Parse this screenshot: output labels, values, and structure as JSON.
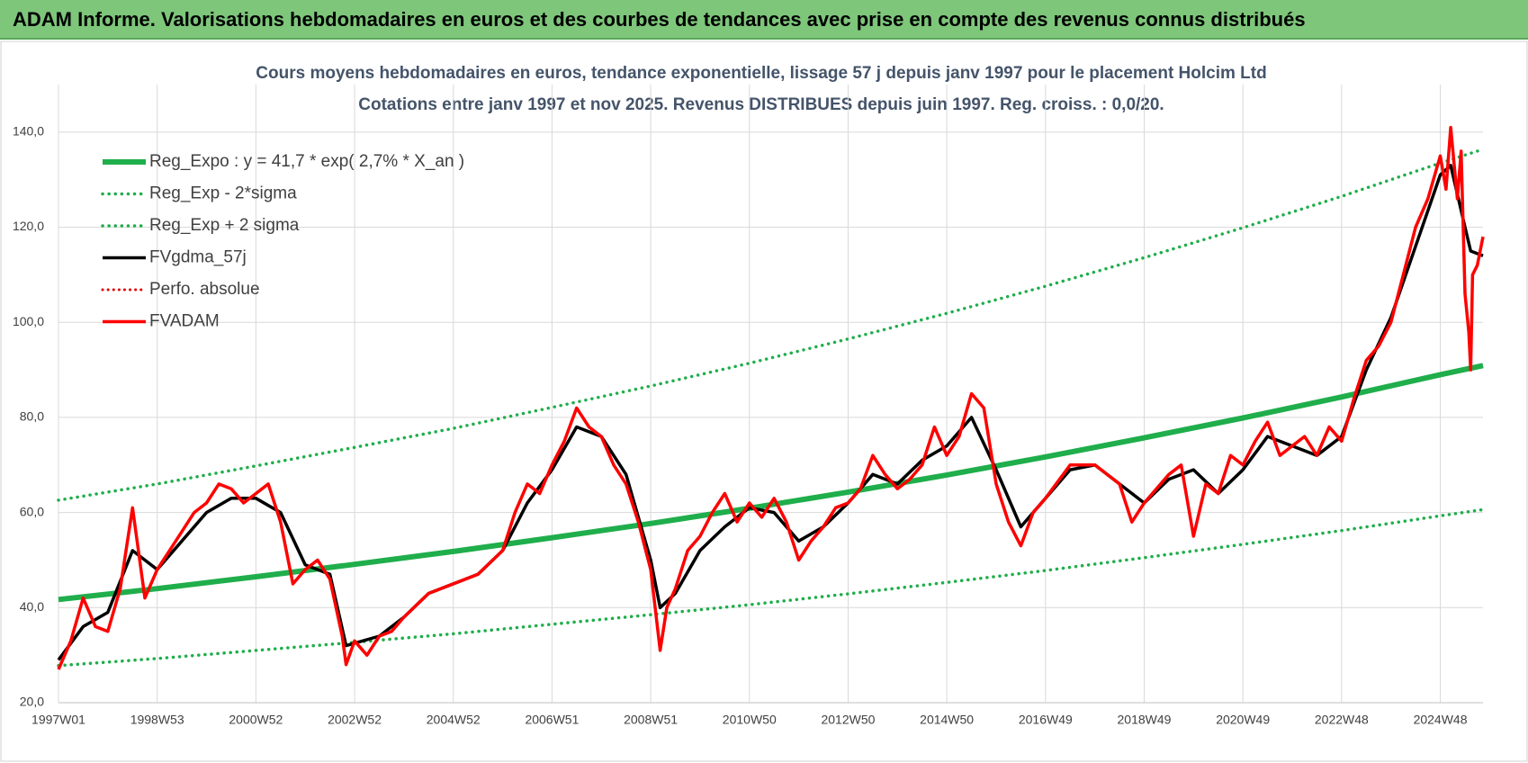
{
  "header": {
    "title": "ADAM Informe. Valorisations hebdomadaires en euros et des courbes de tendances avec prise en compte des revenus connus distribués"
  },
  "chart_data": {
    "type": "line",
    "subtitle": [
      "Cours moyens hebdomadaires en euros, tendance exponentielle, lissage 57 j depuis janv 1997 pour le placement Holcim Ltd",
      "Cotations entre janv 1997 et nov 2025. Revenus DISTRIBUES depuis juin 1997. Reg.  croiss. : 0,0/20."
    ],
    "xlim": [
      0,
      1501
    ],
    "xticks": [
      {
        "value": 0,
        "label": "1997W01"
      },
      {
        "value": 104,
        "label": "1998W53"
      },
      {
        "value": 208,
        "label": "2000W52"
      },
      {
        "value": 312,
        "label": "2002W52"
      },
      {
        "value": 416,
        "label": "2004W52"
      },
      {
        "value": 520,
        "label": "2006W51"
      },
      {
        "value": 624,
        "label": "2008W51"
      },
      {
        "value": 728,
        "label": "2010W50"
      },
      {
        "value": 832,
        "label": "2012W50"
      },
      {
        "value": 936,
        "label": "2014W50"
      },
      {
        "value": 1040,
        "label": "2016W49"
      },
      {
        "value": 1144,
        "label": "2018W49"
      },
      {
        "value": 1248,
        "label": "2020W49"
      },
      {
        "value": 1352,
        "label": "2022W48"
      },
      {
        "value": 1456,
        "label": "2024W48"
      }
    ],
    "ylim": [
      20,
      150
    ],
    "yticks": [
      {
        "value": 20,
        "label": "20,0"
      },
      {
        "value": 40,
        "label": "40,0"
      },
      {
        "value": 60,
        "label": "60,0"
      },
      {
        "value": 80,
        "label": "80,0"
      },
      {
        "value": 100,
        "label": "100,0"
      },
      {
        "value": 120,
        "label": "120,0"
      },
      {
        "value": 140,
        "label": "140,0"
      }
    ],
    "grid": true,
    "series": [
      {
        "name": "Reg_Expo : y = 41,7 * exp( 2,7% *  X_an )",
        "color": "#1fae4b",
        "style": "solid",
        "width": 6,
        "x": [
          0,
          104,
          208,
          312,
          416,
          520,
          624,
          728,
          832,
          936,
          1040,
          1144,
          1248,
          1352,
          1456,
          1501
        ],
        "values": [
          41.7,
          44.0,
          46.5,
          49.1,
          51.8,
          54.7,
          57.7,
          60.9,
          64.3,
          67.9,
          71.7,
          75.7,
          79.9,
          84.3,
          89.0,
          90.9
        ]
      },
      {
        "name": "Reg_Exp - 2*sigma",
        "color": "#1fae4b",
        "style": "dotted",
        "width": 3.5,
        "x": [
          0,
          104,
          208,
          312,
          416,
          520,
          624,
          728,
          832,
          936,
          1040,
          1144,
          1248,
          1352,
          1456,
          1501
        ],
        "values": [
          27.8,
          29.3,
          31.0,
          32.7,
          34.5,
          36.5,
          38.5,
          40.6,
          42.9,
          45.3,
          47.8,
          50.5,
          53.3,
          56.2,
          59.3,
          60.6
        ]
      },
      {
        "name": "Reg_Exp + 2 sigma",
        "color": "#1fae4b",
        "style": "dotted",
        "width": 3.5,
        "x": [
          0,
          104,
          208,
          312,
          416,
          520,
          624,
          728,
          832,
          936,
          1040,
          1144,
          1248,
          1352,
          1456,
          1501
        ],
        "values": [
          62.6,
          66.0,
          69.8,
          73.7,
          77.7,
          82.1,
          86.6,
          91.4,
          96.5,
          101.9,
          107.6,
          113.6,
          119.9,
          126.5,
          133.5,
          136.4
        ]
      },
      {
        "name": "FVgdma_57j",
        "color": "#000000",
        "style": "solid",
        "width": 3.5,
        "x": [
          0,
          26,
          52,
          78,
          104,
          130,
          156,
          182,
          208,
          234,
          260,
          286,
          303,
          338,
          364,
          390,
          416,
          442,
          468,
          494,
          520,
          546,
          572,
          598,
          624,
          634,
          650,
          676,
          702,
          728,
          754,
          780,
          806,
          832,
          858,
          884,
          910,
          936,
          962,
          988,
          1014,
          1040,
          1066,
          1092,
          1118,
          1144,
          1170,
          1196,
          1222,
          1248,
          1274,
          1300,
          1326,
          1352,
          1378,
          1404,
          1430,
          1456,
          1467,
          1482,
          1488,
          1501
        ],
        "values": [
          29,
          36,
          39,
          52,
          48,
          54,
          60,
          63,
          63,
          60,
          49,
          47,
          32,
          34,
          38,
          43,
          45,
          47,
          52,
          62,
          69,
          78,
          76,
          68,
          50,
          40,
          43,
          52,
          57,
          61,
          60,
          54,
          57,
          62,
          68,
          66,
          71,
          74,
          80,
          69,
          57,
          63,
          69,
          70,
          66,
          62,
          67,
          69,
          64,
          69,
          76,
          74,
          72,
          76,
          90,
          101,
          116,
          131,
          133,
          120,
          115,
          114
        ]
      },
      {
        "name": "Perfo. absolue",
        "color": "#e00000",
        "style": "dotted",
        "width": 3,
        "x": [],
        "values": []
      },
      {
        "name": "FVADAM",
        "color": "#ff0000",
        "style": "solid",
        "width": 3.5,
        "x": [
          0,
          13,
          26,
          39,
          52,
          65,
          78,
          91,
          104,
          117,
          130,
          143,
          156,
          169,
          182,
          195,
          208,
          221,
          234,
          247,
          260,
          273,
          286,
          299,
          303,
          312,
          325,
          338,
          351,
          364,
          390,
          416,
          442,
          468,
          481,
          494,
          507,
          520,
          533,
          546,
          559,
          572,
          585,
          598,
          611,
          624,
          634,
          641,
          650,
          663,
          676,
          689,
          702,
          715,
          728,
          741,
          754,
          767,
          780,
          793,
          806,
          819,
          832,
          845,
          858,
          871,
          884,
          897,
          910,
          923,
          936,
          949,
          962,
          975,
          988,
          1001,
          1014,
          1027,
          1040,
          1066,
          1092,
          1118,
          1131,
          1144,
          1170,
          1183,
          1196,
          1209,
          1222,
          1235,
          1248,
          1261,
          1274,
          1287,
          1300,
          1313,
          1326,
          1339,
          1352,
          1365,
          1378,
          1391,
          1404,
          1417,
          1430,
          1443,
          1456,
          1462,
          1467,
          1474,
          1478,
          1482,
          1486,
          1488,
          1490,
          1495,
          1501
        ],
        "values": [
          27,
          33,
          42,
          36,
          35,
          44,
          61,
          42,
          48,
          52,
          56,
          60,
          62,
          66,
          65,
          62,
          64,
          66,
          58,
          45,
          48,
          50,
          46,
          34,
          28,
          33,
          30,
          34,
          35,
          38,
          43,
          45,
          47,
          52,
          60,
          66,
          64,
          70,
          75,
          82,
          78,
          76,
          70,
          66,
          58,
          48,
          31,
          40,
          44,
          52,
          55,
          60,
          64,
          58,
          62,
          59,
          63,
          58,
          50,
          54,
          57,
          61,
          62,
          65,
          72,
          68,
          65,
          67,
          70,
          78,
          72,
          76,
          85,
          82,
          66,
          58,
          53,
          60,
          63,
          70,
          70,
          66,
          58,
          62,
          68,
          70,
          55,
          66,
          64,
          72,
          70,
          75,
          79,
          72,
          74,
          76,
          72,
          78,
          75,
          84,
          92,
          95,
          100,
          110,
          120,
          126,
          135,
          128,
          141,
          126,
          136,
          106,
          98,
          90,
          110,
          112,
          118
        ]
      }
    ],
    "legend": "upper left"
  }
}
